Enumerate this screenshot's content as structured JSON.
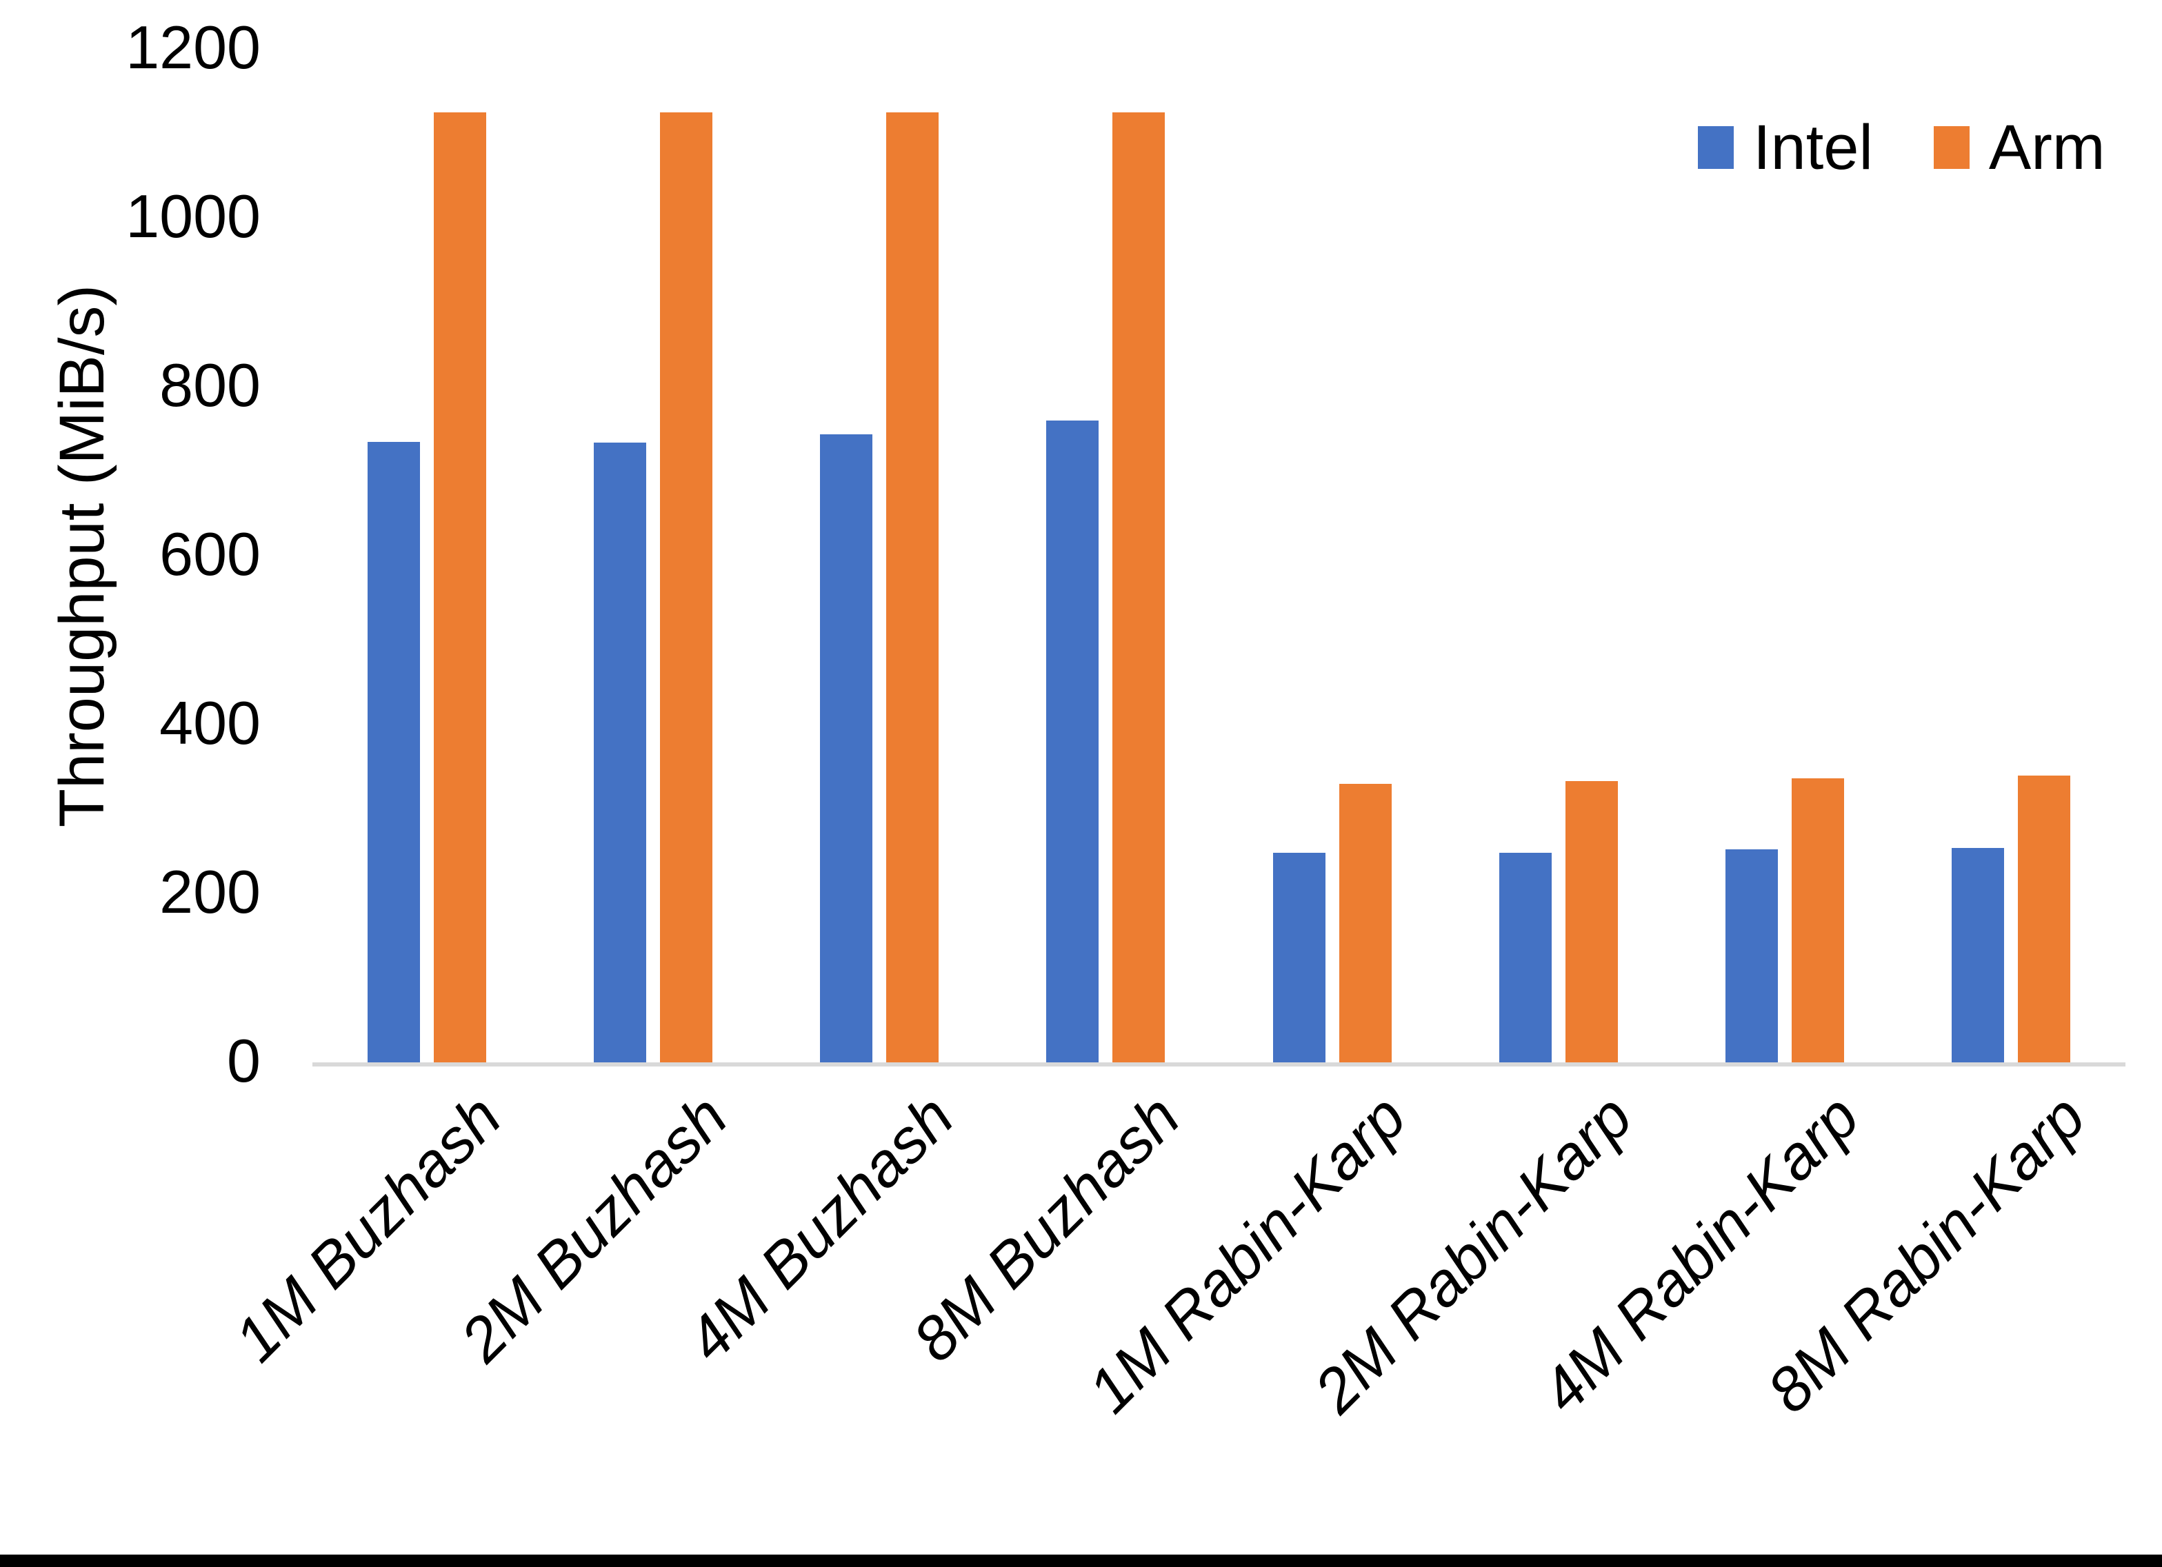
{
  "page": {
    "background": "#ffffff",
    "bottom_border_color": "#000000"
  },
  "chart_data": {
    "type": "bar",
    "title": "",
    "xlabel": "",
    "ylabel": "Throughput (MiB/s)",
    "ylim": [
      0,
      1200
    ],
    "yticks": [
      0,
      200,
      400,
      600,
      800,
      1000,
      1200
    ],
    "grid": false,
    "axis_line_color": "#d9d9d9",
    "text_color": "#000000",
    "legend_position": "top-right",
    "categories": [
      "1M Buzhash",
      "2M Buzhash",
      "4M Buzhash",
      "8M Buzhash",
      "1M Rabin-Karp",
      "2M Rabin-Karp",
      "4M Rabin-Karp",
      "8M Rabin-Karp"
    ],
    "series": [
      {
        "name": "Intel",
        "color": "#4472C4",
        "values": [
          735,
          734,
          744,
          760,
          248,
          248,
          252,
          254
        ]
      },
      {
        "name": "Arm",
        "color": "#ED7D31",
        "values": [
          1125,
          1125,
          1125,
          1125,
          330,
          333,
          336,
          340
        ]
      }
    ]
  }
}
